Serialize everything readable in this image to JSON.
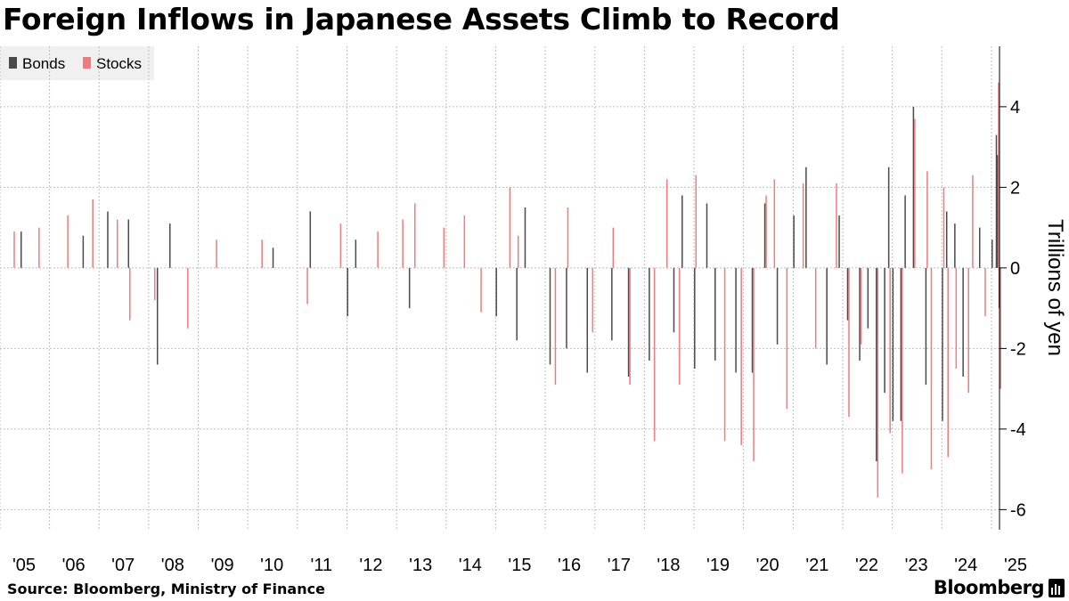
{
  "source": "Source: Bloomberg, Ministry of Finance",
  "brand": "Bloomberg",
  "chart_data": {
    "type": "bar",
    "stacked": true,
    "title": "Foreign Inflows in Japanese Assets Climb to Record",
    "ylabel": "Trillions of yen",
    "xlabel": "",
    "ylim": [
      -6.5,
      5.5
    ],
    "yticks": [
      -6,
      -4,
      -2,
      0,
      2,
      4
    ],
    "ytick_labels": [
      "-6",
      "-4",
      "-2",
      "0",
      "2",
      "4"
    ],
    "xlim": [
      "2005-01-01",
      "2025-03-01"
    ],
    "xticks": [
      "2005-01-01",
      "2006-01-01",
      "2007-01-01",
      "2008-01-01",
      "2009-01-01",
      "2010-01-01",
      "2011-01-01",
      "2012-01-01",
      "2013-01-01",
      "2014-01-01",
      "2015-01-01",
      "2016-01-01",
      "2017-01-01",
      "2018-01-01",
      "2019-01-01",
      "2020-01-01",
      "2021-01-01",
      "2022-01-01",
      "2023-01-01",
      "2024-01-01",
      "2025-01-01"
    ],
    "xtick_labels": [
      "'05",
      "'06",
      "'07",
      "'08",
      "'09",
      "'10",
      "'11",
      "'12",
      "'13",
      "'14",
      "'15",
      "'16",
      "'17",
      "'18",
      "'19",
      "'20",
      "'21",
      "'22",
      "'23",
      "'24",
      "'25"
    ],
    "grid": true,
    "legend_position": "top-left",
    "frequency": "weekly",
    "series": [
      {
        "name": "Bonds",
        "color": "#4a4a4a",
        "points": [
          [
            "2005-06-01",
            0.9
          ],
          [
            "2006-09-01",
            0.8
          ],
          [
            "2007-03-01",
            1.4
          ],
          [
            "2007-08-01",
            1.2
          ],
          [
            "2008-03-01",
            -2.4
          ],
          [
            "2008-06-01",
            1.1
          ],
          [
            "2010-07-01",
            0.5
          ],
          [
            "2011-04-01",
            1.4
          ],
          [
            "2012-01-01",
            -1.2
          ],
          [
            "2012-03-01",
            0.7
          ],
          [
            "2013-04-01",
            -1.0
          ],
          [
            "2015-01-01",
            -1.2
          ],
          [
            "2015-06-01",
            -1.8
          ],
          [
            "2015-08-01",
            1.5
          ],
          [
            "2016-02-01",
            -2.4
          ],
          [
            "2016-06-01",
            -2.0
          ],
          [
            "2016-11-01",
            -2.6
          ],
          [
            "2017-05-01",
            -1.8
          ],
          [
            "2017-09-01",
            -2.7
          ],
          [
            "2018-02-01",
            -2.3
          ],
          [
            "2018-08-01",
            -1.6
          ],
          [
            "2018-10-01",
            1.8
          ],
          [
            "2019-01-01",
            -2.5
          ],
          [
            "2019-04-01",
            1.6
          ],
          [
            "2019-06-01",
            -2.3
          ],
          [
            "2019-11-01",
            -2.6
          ],
          [
            "2020-03-01",
            -2.6
          ],
          [
            "2020-06-01",
            1.6
          ],
          [
            "2020-09-01",
            -1.9
          ],
          [
            "2021-01-01",
            1.3
          ],
          [
            "2021-04-01",
            2.5
          ],
          [
            "2021-09-01",
            -2.4
          ],
          [
            "2021-12-01",
            1.3
          ],
          [
            "2022-02-01",
            -1.3
          ],
          [
            "2022-05-01",
            -2.3
          ],
          [
            "2022-07-01",
            -1.5
          ],
          [
            "2022-09-01",
            -4.8
          ],
          [
            "2022-11-01",
            -3.1
          ],
          [
            "2022-12-01",
            2.5
          ],
          [
            "2023-01-01",
            -3.8
          ],
          [
            "2023-03-01",
            -3.8
          ],
          [
            "2023-04-01",
            1.8
          ],
          [
            "2023-06-01",
            4.0
          ],
          [
            "2023-09-01",
            -2.9
          ],
          [
            "2024-01-01",
            -3.8
          ],
          [
            "2024-02-01",
            1.4
          ],
          [
            "2024-04-01",
            1.1
          ],
          [
            "2024-06-01",
            -2.7
          ],
          [
            "2024-10-01",
            1.0
          ],
          [
            "2025-01-01",
            0.7
          ],
          [
            "2025-02-01",
            3.3
          ],
          [
            "2025-02-08",
            2.8
          ],
          [
            "2025-02-22",
            -1.0
          ]
        ]
      },
      {
        "name": "Stocks",
        "color": "#f07a7c",
        "points": [
          [
            "2005-04-01",
            0.9
          ],
          [
            "2005-10-01",
            1.0
          ],
          [
            "2006-05-01",
            1.3
          ],
          [
            "2006-11-01",
            1.7
          ],
          [
            "2007-05-01",
            1.2
          ],
          [
            "2007-08-01",
            -1.3
          ],
          [
            "2008-02-01",
            -0.8
          ],
          [
            "2008-10-01",
            -1.5
          ],
          [
            "2009-05-01",
            0.7
          ],
          [
            "2010-04-01",
            0.7
          ],
          [
            "2011-03-01",
            -0.9
          ],
          [
            "2011-11-01",
            1.1
          ],
          [
            "2012-08-01",
            0.9
          ],
          [
            "2013-02-01",
            1.2
          ],
          [
            "2013-05-01",
            1.6
          ],
          [
            "2013-12-01",
            1.0
          ],
          [
            "2014-05-01",
            1.3
          ],
          [
            "2014-09-01",
            -1.1
          ],
          [
            "2015-04-01",
            2.0
          ],
          [
            "2015-06-01",
            0.8
          ],
          [
            "2016-03-01",
            -2.9
          ],
          [
            "2016-06-01",
            1.5
          ],
          [
            "2016-12-01",
            -1.6
          ],
          [
            "2017-05-01",
            1.0
          ],
          [
            "2017-09-01",
            -2.9
          ],
          [
            "2018-03-01",
            -4.3
          ],
          [
            "2018-06-01",
            2.2
          ],
          [
            "2018-09-01",
            -2.9
          ],
          [
            "2019-01-01",
            2.3
          ],
          [
            "2019-08-01",
            -4.3
          ],
          [
            "2019-12-01",
            -4.4
          ],
          [
            "2020-03-01",
            -4.8
          ],
          [
            "2020-06-01",
            1.8
          ],
          [
            "2020-08-01",
            2.2
          ],
          [
            "2020-11-01",
            -3.5
          ],
          [
            "2021-03-01",
            2.1
          ],
          [
            "2021-06-01",
            -2.0
          ],
          [
            "2021-11-01",
            2.1
          ],
          [
            "2022-02-01",
            -3.7
          ],
          [
            "2022-05-01",
            -1.9
          ],
          [
            "2022-09-01",
            -5.7
          ],
          [
            "2022-12-01",
            -4.1
          ],
          [
            "2023-03-01",
            -5.1
          ],
          [
            "2023-06-01",
            3.7
          ],
          [
            "2023-09-01",
            2.4
          ],
          [
            "2023-10-01",
            -5.0
          ],
          [
            "2024-01-01",
            2.0
          ],
          [
            "2024-02-01",
            -4.7
          ],
          [
            "2024-04-01",
            -2.5
          ],
          [
            "2024-07-01",
            -3.1
          ],
          [
            "2024-08-01",
            2.3
          ],
          [
            "2024-11-01",
            -1.2
          ],
          [
            "2025-02-08",
            4.6
          ],
          [
            "2025-02-22",
            -3.0
          ]
        ]
      }
    ]
  }
}
